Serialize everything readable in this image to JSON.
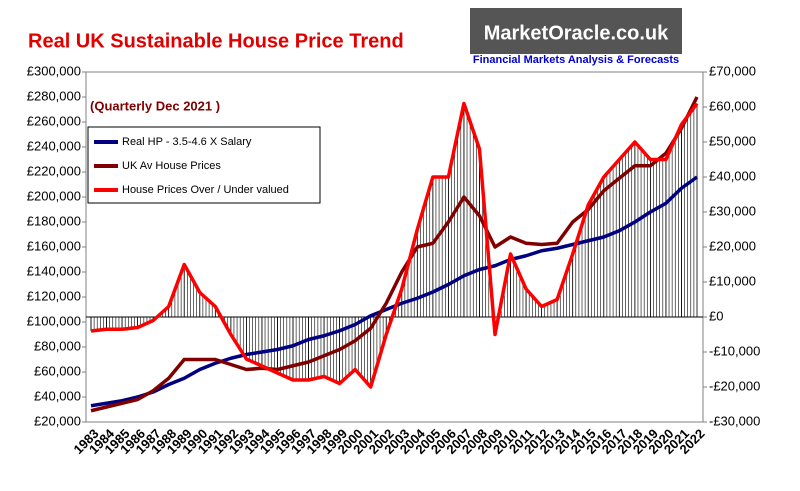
{
  "chart_data": {
    "type": "line",
    "title": "Real UK Sustainable House Price Trend",
    "annotation": "(Quarterly Dec 2021 )",
    "logo": {
      "name": "MarketOracle.co.uk",
      "tagline": "Financial Markets Analysis & Forecasts"
    },
    "categories": [
      "1983",
      "1984",
      "1985",
      "1986",
      "1987",
      "1988",
      "1989",
      "1990",
      "1991",
      "1992",
      "1993",
      "1994",
      "1995",
      "1996",
      "1997",
      "1998",
      "1999",
      "2000",
      "2001",
      "2002",
      "2003",
      "2004",
      "2005",
      "2006",
      "2007",
      "2008",
      "2009",
      "2010",
      "2011",
      "2012",
      "2013",
      "2014",
      "2015",
      "2016",
      "2017",
      "2018",
      "2019",
      "2020",
      "2021",
      "2022"
    ],
    "series": [
      {
        "name": "Real HP - 3.5-4.6 X Salary",
        "color": "#000080",
        "axis": "y",
        "values": [
          33000,
          35000,
          37000,
          40000,
          44000,
          50000,
          55000,
          62000,
          67000,
          71000,
          74000,
          76000,
          78000,
          81000,
          86000,
          89000,
          93000,
          98000,
          105000,
          110000,
          115000,
          119000,
          124000,
          130000,
          137000,
          142000,
          145000,
          150000,
          153000,
          157000,
          159000,
          162000,
          165000,
          168000,
          173000,
          180000,
          188000,
          195000,
          207000,
          216000
        ]
      },
      {
        "name": "UK Av House Prices",
        "color": "#800000",
        "axis": "y",
        "values": [
          29000,
          32000,
          35000,
          38000,
          45000,
          55000,
          70000,
          70000,
          70000,
          66000,
          62000,
          63000,
          62000,
          65000,
          68000,
          73000,
          78000,
          85000,
          95000,
          115000,
          140000,
          160000,
          163000,
          180000,
          200000,
          185000,
          160000,
          168000,
          163000,
          162000,
          163000,
          180000,
          190000,
          205000,
          215000,
          225000,
          225000,
          235000,
          255000,
          280000
        ]
      },
      {
        "name": "House Prices Over / Under valued",
        "color": "#ff0000",
        "axis": "y2",
        "values": [
          -4000,
          -3500,
          -3500,
          -3000,
          -1000,
          3000,
          15000,
          7000,
          3000,
          -5000,
          -12000,
          -14000,
          -16000,
          -18000,
          -18000,
          -17000,
          -19000,
          -15000,
          -20000,
          -5000,
          8000,
          25000,
          40000,
          40000,
          61000,
          48000,
          -5000,
          18000,
          8000,
          3000,
          5000,
          18000,
          32000,
          40000,
          45000,
          50000,
          45000,
          45000,
          55000,
          61000
        ]
      }
    ],
    "ylim": [
      20000,
      300000
    ],
    "yticks": [
      {
        "value": 20000,
        "label": "£20,000"
      },
      {
        "value": 40000,
        "label": "£40,000"
      },
      {
        "value": 60000,
        "label": "£60,000"
      },
      {
        "value": 80000,
        "label": "£80,000"
      },
      {
        "value": 100000,
        "label": "£100,000"
      },
      {
        "value": 120000,
        "label": "£120,000"
      },
      {
        "value": 140000,
        "label": "£140,000"
      },
      {
        "value": 160000,
        "label": "£160,000"
      },
      {
        "value": 180000,
        "label": "£180,000"
      },
      {
        "value": 200000,
        "label": "£200,000"
      },
      {
        "value": 220000,
        "label": "£220,000"
      },
      {
        "value": 240000,
        "label": "£240,000"
      },
      {
        "value": 260000,
        "label": "£260,000"
      },
      {
        "value": 280000,
        "label": "£280,000"
      },
      {
        "value": 300000,
        "label": "£300,000"
      }
    ],
    "y2lim": [
      -30000,
      70000
    ],
    "y2ticks": [
      {
        "value": -30000,
        "label": "-£30,000"
      },
      {
        "value": -20000,
        "label": "-£20,000"
      },
      {
        "value": -10000,
        "label": "-£10,000"
      },
      {
        "value": 0,
        "label": "£0"
      },
      {
        "value": 10000,
        "label": "£10,000"
      },
      {
        "value": 20000,
        "label": "£20,000"
      },
      {
        "value": 30000,
        "label": "£30,000"
      },
      {
        "value": 40000,
        "label": "£40,000"
      },
      {
        "value": 50000,
        "label": "£50,000"
      },
      {
        "value": 60000,
        "label": "£60,000"
      },
      {
        "value": 70000,
        "label": "£70,000"
      }
    ]
  }
}
